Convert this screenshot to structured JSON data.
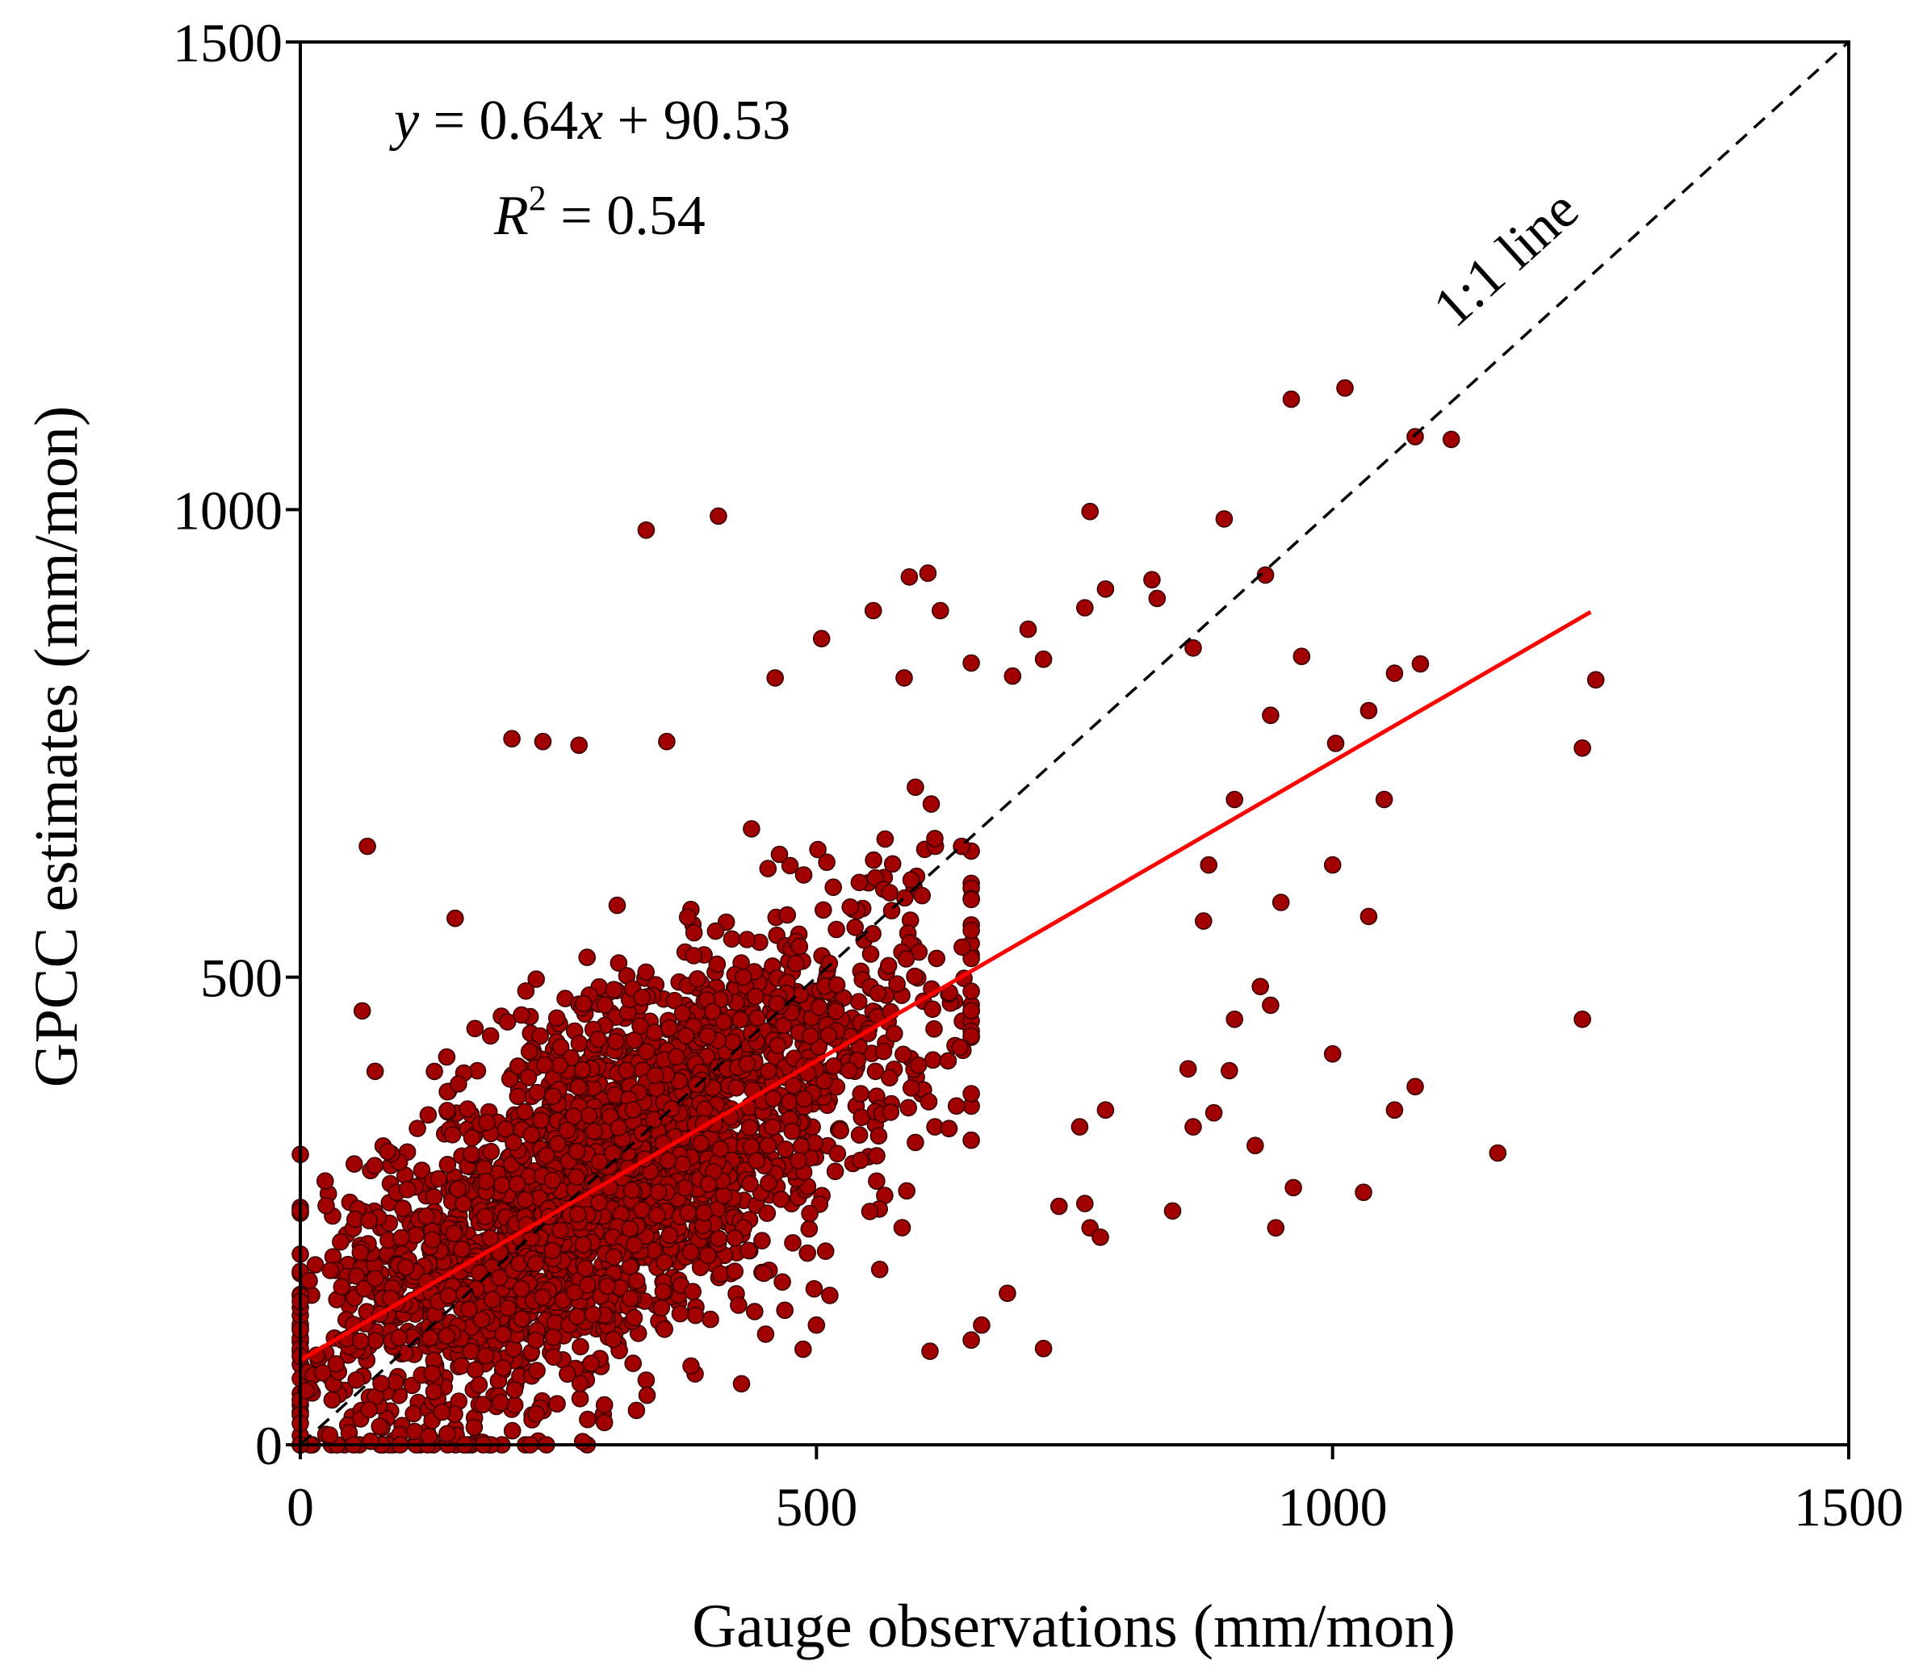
{
  "chart_data": {
    "type": "scatter",
    "xlabel": "Gauge observations (mm/mon)",
    "ylabel": "GPCC estimates (mm/mon)",
    "xlim": [
      0,
      1500
    ],
    "ylim": [
      0,
      1500
    ],
    "xticks": [
      "0",
      "500",
      "1000",
      "1500"
    ],
    "yticks": [
      "0",
      "500",
      "1000",
      "1500"
    ],
    "grid": false,
    "point_color": "#a00000",
    "point_edge_color": "#3a0000",
    "regression": {
      "slope": 0.64,
      "intercept": 90.53,
      "x_range": [
        0,
        1250
      ],
      "color": "#ff0000",
      "equation_parts": {
        "y": "y",
        "rhs_a": " = 0.64",
        "x": "x",
        "rhs_b": " + 90.53"
      },
      "r2_parts": {
        "r": "R",
        "sup": "2",
        "rhs": " = 0.54"
      }
    },
    "identity_line": {
      "label": "1:1 line",
      "range": [
        0,
        1500
      ],
      "color": "#000000",
      "style": "dashed"
    },
    "cluster_spec": {
      "count": 2600,
      "seed": 7,
      "note": "dense cloud of ~monthly station pairs, mean x~300, mean y~290"
    },
    "points_outliers": [
      [
        960,
        1118
      ],
      [
        1012,
        1130
      ],
      [
        1080,
        1078
      ],
      [
        1115,
        1075
      ],
      [
        405,
        993
      ],
      [
        335,
        978
      ],
      [
        765,
        998
      ],
      [
        895,
        990
      ],
      [
        590,
        928
      ],
      [
        608,
        932
      ],
      [
        935,
        930
      ],
      [
        825,
        925
      ],
      [
        780,
        915
      ],
      [
        830,
        905
      ],
      [
        760,
        895
      ],
      [
        620,
        892
      ],
      [
        555,
        892
      ],
      [
        505,
        862
      ],
      [
        705,
        872
      ],
      [
        865,
        852
      ],
      [
        970,
        843
      ],
      [
        1060,
        825
      ],
      [
        1085,
        835
      ],
      [
        1255,
        818
      ],
      [
        460,
        820
      ],
      [
        585,
        820
      ],
      [
        650,
        836
      ],
      [
        690,
        822
      ],
      [
        720,
        840
      ],
      [
        1035,
        785
      ],
      [
        1003,
        750
      ],
      [
        1242,
        745
      ],
      [
        940,
        780
      ],
      [
        270,
        748
      ],
      [
        235,
        752
      ],
      [
        355,
        752
      ],
      [
        205,
        755
      ],
      [
        905,
        690
      ],
      [
        1050,
        690
      ],
      [
        1035,
        565
      ],
      [
        65,
        640
      ],
      [
        60,
        464
      ],
      [
        150,
        563
      ],
      [
        930,
        490
      ],
      [
        940,
        470
      ],
      [
        905,
        455
      ],
      [
        1000,
        418
      ],
      [
        1242,
        455
      ],
      [
        962,
        275
      ],
      [
        945,
        232
      ],
      [
        1030,
        270
      ],
      [
        1160,
        312
      ],
      [
        1080,
        383
      ],
      [
        1060,
        358
      ],
      [
        860,
        402
      ],
      [
        885,
        355
      ],
      [
        865,
        340
      ],
      [
        780,
        358
      ],
      [
        760,
        258
      ],
      [
        765,
        232
      ],
      [
        775,
        222
      ],
      [
        845,
        250
      ],
      [
        735,
        255
      ],
      [
        755,
        340
      ],
      [
        685,
        162
      ],
      [
        660,
        128
      ],
      [
        650,
        112
      ],
      [
        610,
        100
      ],
      [
        720,
        103
      ],
      [
        500,
        128
      ],
      [
        925,
        320
      ],
      [
        900,
        400
      ],
      [
        950,
        580
      ],
      [
        1000,
        620
      ],
      [
        875,
        560
      ],
      [
        880,
        620
      ]
    ]
  }
}
